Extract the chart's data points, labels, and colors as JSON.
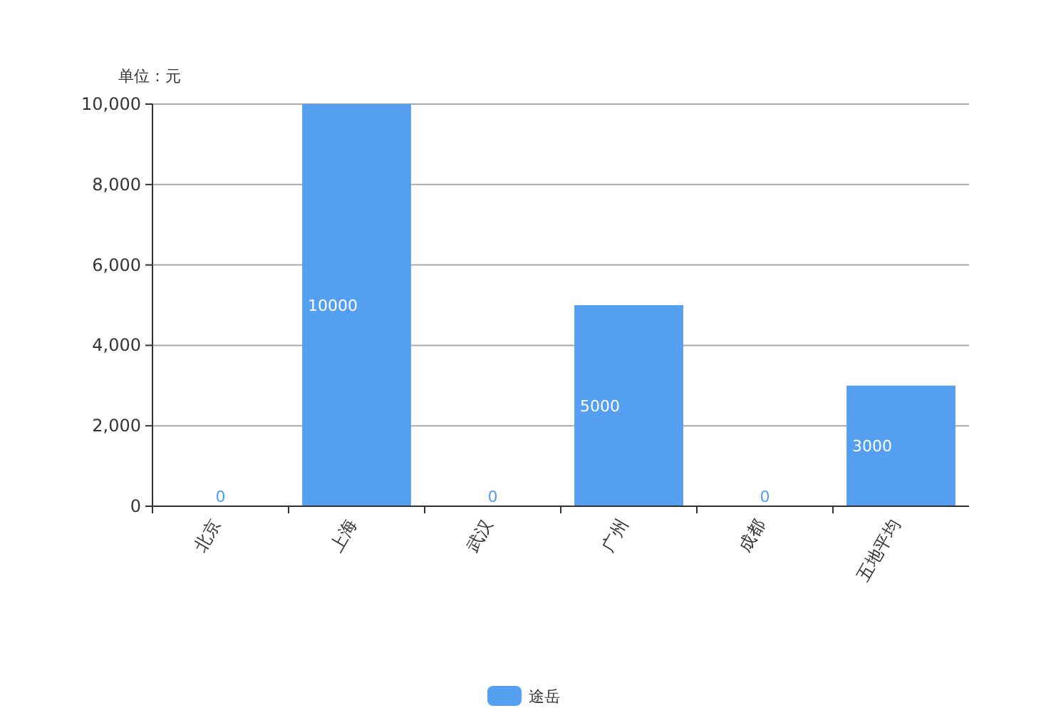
{
  "chart_data": {
    "type": "bar",
    "ylabel": "单位：元",
    "categories": [
      "北京",
      "上海",
      "武汉",
      "广州",
      "成都",
      "五地平均"
    ],
    "series": [
      {
        "name": "途岳",
        "color": "#559ff0",
        "values": [
          0,
          10000,
          0,
          5000,
          0,
          3000
        ]
      }
    ],
    "ylim": [
      0,
      10000
    ],
    "yticks": [
      0,
      {
        "value": 2000,
        "label": "2,000"
      },
      {
        "value": 4000,
        "label": "4,000"
      },
      {
        "value": 6000,
        "label": "6,000"
      },
      {
        "value": 8000,
        "label": "8,000"
      },
      {
        "value": 10000,
        "label": "10,000"
      }
    ],
    "grid": "y",
    "legend": "bottom",
    "data_labels": true
  }
}
